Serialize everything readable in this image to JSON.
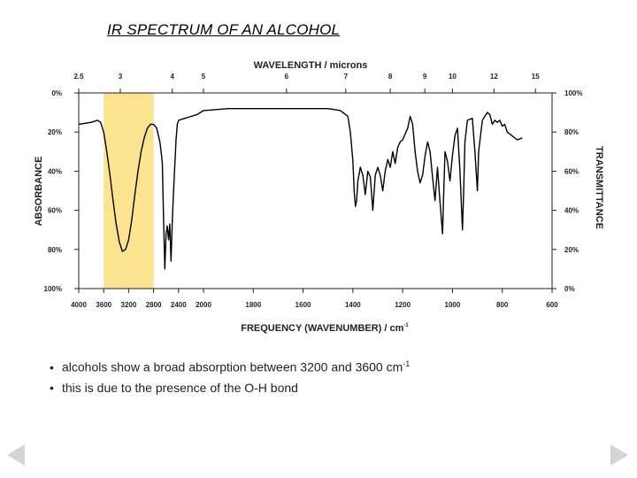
{
  "slide": {
    "title": "IR SPECTRUM OF AN ALCOHOL",
    "bullets": [
      {
        "text": "alcohols show a broad absorption between 3200 and 3600 cm",
        "sup": "-1"
      },
      {
        "text": "this is due to the presence of the O-H bond",
        "sup": ""
      }
    ],
    "bullet_char": "•",
    "nav": {
      "prev": "previous-slide",
      "next": "next-slide"
    }
  },
  "chart_data": {
    "type": "line",
    "title": "IR SPECTRUM OF AN ALCOHOL",
    "xlabel": "FREQUENCY (WAVENUMBER) / cm",
    "xlabel_sup": "-1",
    "top_axis_label": "WAVELENGTH / microns",
    "ylabel_left": "ABSORBANCE",
    "ylabel_right": "TRANSMITTANCE",
    "x_ticks": [
      4000,
      3600,
      3200,
      2800,
      2400,
      2000,
      1800,
      1600,
      1400,
      1200,
      1000,
      800,
      600
    ],
    "x_tick_labels": [
      "4000",
      "3600",
      "3200",
      "2800",
      "2400",
      "2000",
      "1800",
      "1600",
      "1400",
      "1200",
      "1000",
      "800",
      "600"
    ],
    "top_ticks": [
      2.5,
      3,
      4,
      5,
      6,
      7,
      8,
      9,
      10,
      12,
      15
    ],
    "top_tick_labels": [
      "2.5",
      "3",
      "4",
      "5",
      "6",
      "7",
      "8",
      "9",
      "10",
      "12",
      "15"
    ],
    "left_ticks": [
      "0%",
      "20%",
      "40%",
      "60%",
      "80%",
      "100%"
    ],
    "right_ticks": [
      "100%",
      "80%",
      "60%",
      "40%",
      "20%",
      "0%"
    ],
    "ylim": [
      0,
      100
    ],
    "highlight_band": {
      "from": 3600,
      "to": 2800,
      "color": "#fbe38f"
    },
    "line_color": "#000000",
    "series": [
      {
        "points": [
          [
            4000,
            84
          ],
          [
            3800,
            85
          ],
          [
            3700,
            86
          ],
          [
            3650,
            85
          ],
          [
            3600,
            80
          ],
          [
            3550,
            70
          ],
          [
            3500,
            58
          ],
          [
            3450,
            45
          ],
          [
            3400,
            33
          ],
          [
            3350,
            24
          ],
          [
            3300,
            19
          ],
          [
            3250,
            20
          ],
          [
            3200,
            25
          ],
          [
            3150,
            35
          ],
          [
            3100,
            48
          ],
          [
            3050,
            60
          ],
          [
            3000,
            70
          ],
          [
            2950,
            77
          ],
          [
            2900,
            82
          ],
          [
            2850,
            84
          ],
          [
            2800,
            84
          ],
          [
            2750,
            82
          ],
          [
            2700,
            75
          ],
          [
            2680,
            70
          ],
          [
            2660,
            64
          ],
          [
            2640,
            35
          ],
          [
            2620,
            10
          ],
          [
            2600,
            28
          ],
          [
            2580,
            32
          ],
          [
            2560,
            25
          ],
          [
            2540,
            33
          ],
          [
            2520,
            14
          ],
          [
            2500,
            35
          ],
          [
            2480,
            50
          ],
          [
            2460,
            63
          ],
          [
            2440,
            76
          ],
          [
            2420,
            84
          ],
          [
            2400,
            86
          ],
          [
            2300,
            87
          ],
          [
            2200,
            88
          ],
          [
            2100,
            89
          ],
          [
            2000,
            91
          ],
          [
            1900,
            92
          ],
          [
            1800,
            92
          ],
          [
            1700,
            92
          ],
          [
            1600,
            92
          ],
          [
            1500,
            92
          ],
          [
            1450,
            91
          ],
          [
            1420,
            88
          ],
          [
            1410,
            80
          ],
          [
            1400,
            65
          ],
          [
            1395,
            50
          ],
          [
            1390,
            42
          ],
          [
            1385,
            45
          ],
          [
            1380,
            55
          ],
          [
            1370,
            62
          ],
          [
            1360,
            58
          ],
          [
            1350,
            48
          ],
          [
            1340,
            60
          ],
          [
            1330,
            57
          ],
          [
            1320,
            40
          ],
          [
            1310,
            58
          ],
          [
            1300,
            62
          ],
          [
            1290,
            58
          ],
          [
            1280,
            50
          ],
          [
            1270,
            60
          ],
          [
            1260,
            66
          ],
          [
            1250,
            62
          ],
          [
            1240,
            70
          ],
          [
            1230,
            64
          ],
          [
            1220,
            72
          ],
          [
            1210,
            75
          ],
          [
            1200,
            76
          ],
          [
            1180,
            82
          ],
          [
            1170,
            88
          ],
          [
            1160,
            84
          ],
          [
            1150,
            70
          ],
          [
            1140,
            60
          ],
          [
            1130,
            54
          ],
          [
            1120,
            58
          ],
          [
            1110,
            68
          ],
          [
            1100,
            75
          ],
          [
            1090,
            70
          ],
          [
            1080,
            57
          ],
          [
            1070,
            45
          ],
          [
            1060,
            62
          ],
          [
            1050,
            44
          ],
          [
            1040,
            28
          ],
          [
            1035,
            50
          ],
          [
            1030,
            70
          ],
          [
            1020,
            65
          ],
          [
            1010,
            55
          ],
          [
            1000,
            68
          ],
          [
            990,
            78
          ],
          [
            985,
            80
          ],
          [
            980,
            82
          ],
          [
            970,
            60
          ],
          [
            960,
            30
          ],
          [
            955,
            50
          ],
          [
            950,
            75
          ],
          [
            940,
            86
          ],
          [
            920,
            87
          ],
          [
            910,
            70
          ],
          [
            900,
            50
          ],
          [
            895,
            70
          ],
          [
            880,
            86
          ],
          [
            860,
            90
          ],
          [
            850,
            89
          ],
          [
            840,
            84
          ],
          [
            830,
            86
          ],
          [
            820,
            85
          ],
          [
            810,
            86
          ],
          [
            800,
            83
          ],
          [
            790,
            84
          ],
          [
            780,
            80
          ],
          [
            760,
            78
          ],
          [
            740,
            76
          ],
          [
            720,
            77
          ]
        ]
      }
    ]
  }
}
